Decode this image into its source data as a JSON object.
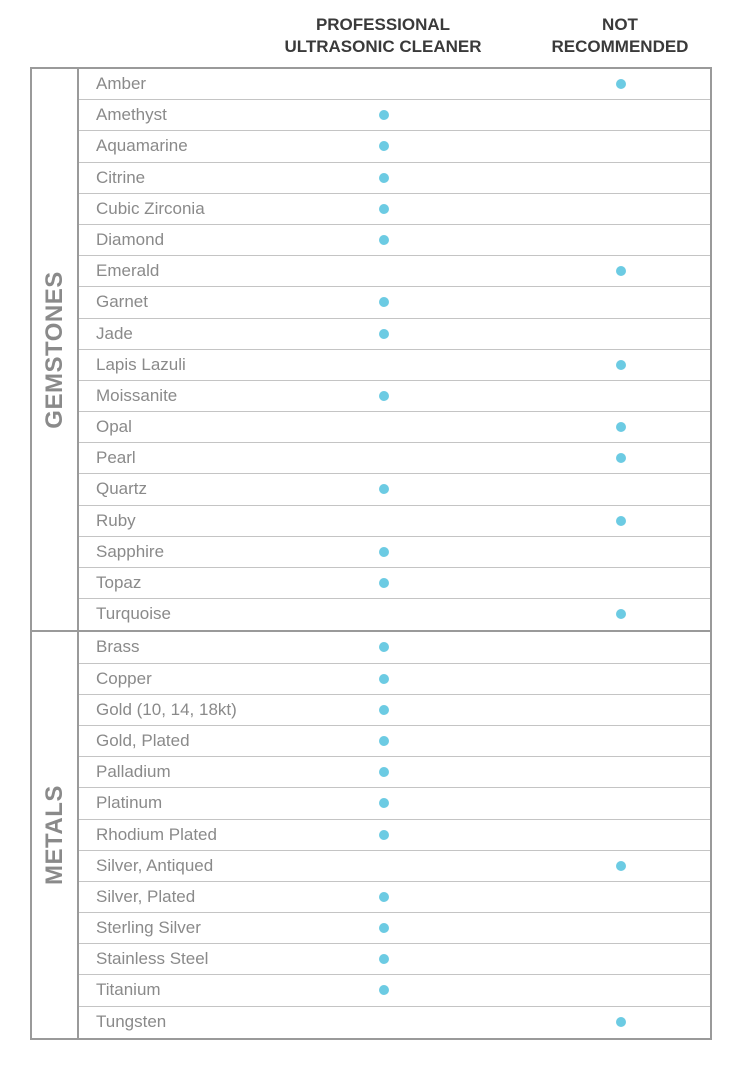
{
  "columns": {
    "professional": [
      "PROFESSIONAL",
      "ULTRASONIC CLEANER"
    ],
    "not_recommended": [
      "NOT",
      "RECOMMENDED"
    ]
  },
  "marker_color": "#6ccbe3",
  "groups": [
    {
      "label": "GEMSTONES",
      "items": [
        {
          "name": "Amber",
          "rating": "not_recommended"
        },
        {
          "name": "Amethyst",
          "rating": "professional"
        },
        {
          "name": "Aquamarine",
          "rating": "professional"
        },
        {
          "name": "Citrine",
          "rating": "professional"
        },
        {
          "name": "Cubic Zirconia",
          "rating": "professional"
        },
        {
          "name": "Diamond",
          "rating": "professional"
        },
        {
          "name": "Emerald",
          "rating": "not_recommended"
        },
        {
          "name": "Garnet",
          "rating": "professional"
        },
        {
          "name": "Jade",
          "rating": "professional"
        },
        {
          "name": "Lapis Lazuli",
          "rating": "not_recommended"
        },
        {
          "name": "Moissanite",
          "rating": "professional"
        },
        {
          "name": "Opal",
          "rating": "not_recommended"
        },
        {
          "name": "Pearl",
          "rating": "not_recommended"
        },
        {
          "name": "Quartz",
          "rating": "professional"
        },
        {
          "name": "Ruby",
          "rating": "not_recommended"
        },
        {
          "name": "Sapphire",
          "rating": "professional"
        },
        {
          "name": "Topaz",
          "rating": "professional"
        },
        {
          "name": "Turquoise",
          "rating": "not_recommended"
        }
      ]
    },
    {
      "label": "METALS",
      "items": [
        {
          "name": "Brass",
          "rating": "professional"
        },
        {
          "name": "Copper",
          "rating": "professional"
        },
        {
          "name": "Gold (10, 14, 18kt)",
          "rating": "professional"
        },
        {
          "name": "Gold, Plated",
          "rating": "professional"
        },
        {
          "name": "Palladium",
          "rating": "professional"
        },
        {
          "name": "Platinum",
          "rating": "professional"
        },
        {
          "name": "Rhodium Plated",
          "rating": "professional"
        },
        {
          "name": "Silver, Antiqued",
          "rating": "not_recommended"
        },
        {
          "name": "Silver, Plated",
          "rating": "professional"
        },
        {
          "name": "Sterling Silver",
          "rating": "professional"
        },
        {
          "name": "Stainless Steel",
          "rating": "professional"
        },
        {
          "name": "Titanium",
          "rating": "professional"
        },
        {
          "name": "Tungsten",
          "rating": "not_recommended"
        }
      ]
    }
  ]
}
